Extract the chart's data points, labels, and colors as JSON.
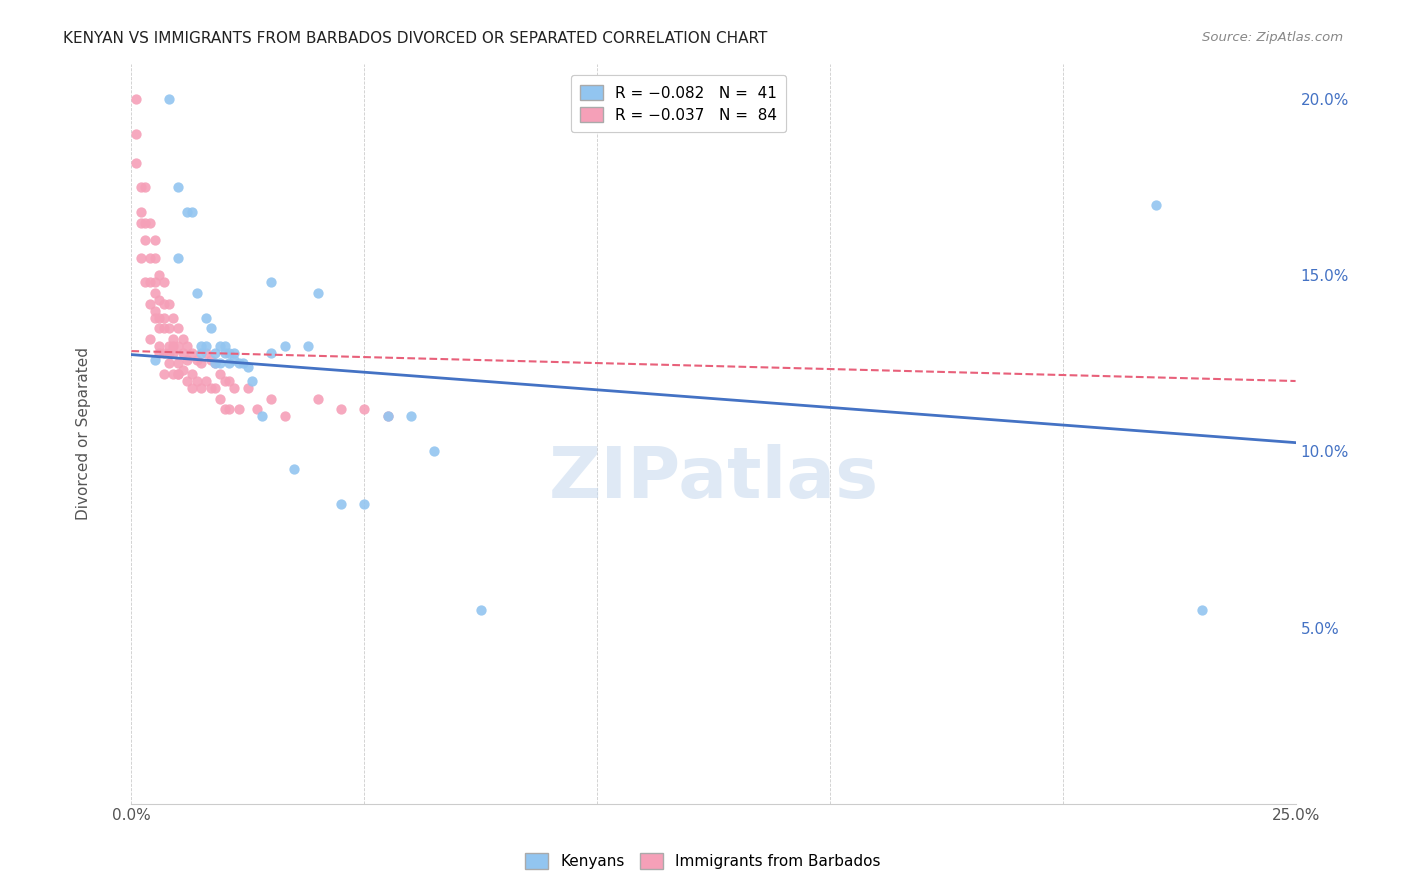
{
  "title": "KENYAN VS IMMIGRANTS FROM BARBADOS DIVORCED OR SEPARATED CORRELATION CHART",
  "source": "Source: ZipAtlas.com",
  "ylabel": "Divorced or Separated",
  "xlim": [
    0.0,
    0.25
  ],
  "ylim": [
    0.0,
    0.21
  ],
  "xtick_positions": [
    0.0,
    0.05,
    0.1,
    0.15,
    0.2,
    0.25
  ],
  "xticklabels": [
    "0.0%",
    "",
    "",
    "",
    "",
    "25.0%"
  ],
  "yticks_right": [
    0.05,
    0.1,
    0.15,
    0.2
  ],
  "ytick_right_labels": [
    "5.0%",
    "10.0%",
    "15.0%",
    "20.0%"
  ],
  "legend_color1": "#92C5F0",
  "legend_color2": "#F5A0B8",
  "line_color1": "#4472C4",
  "line_color2": "#E8607A",
  "watermark": "ZIPatlas",
  "kenyan_x": [
    0.005,
    0.008,
    0.01,
    0.01,
    0.012,
    0.013,
    0.014,
    0.015,
    0.015,
    0.016,
    0.016,
    0.017,
    0.018,
    0.018,
    0.019,
    0.019,
    0.02,
    0.02,
    0.021,
    0.021,
    0.022,
    0.022,
    0.023,
    0.024,
    0.025,
    0.026,
    0.028,
    0.03,
    0.033,
    0.035,
    0.038,
    0.04,
    0.045,
    0.05,
    0.055,
    0.06,
    0.065,
    0.075,
    0.22,
    0.23,
    0.03
  ],
  "kenyan_y": [
    0.126,
    0.2,
    0.175,
    0.155,
    0.168,
    0.168,
    0.145,
    0.128,
    0.13,
    0.138,
    0.13,
    0.135,
    0.128,
    0.125,
    0.13,
    0.125,
    0.128,
    0.13,
    0.128,
    0.125,
    0.126,
    0.128,
    0.125,
    0.125,
    0.124,
    0.12,
    0.11,
    0.128,
    0.13,
    0.095,
    0.13,
    0.145,
    0.085,
    0.085,
    0.11,
    0.11,
    0.1,
    0.055,
    0.17,
    0.055,
    0.148
  ],
  "barbados_x": [
    0.001,
    0.001,
    0.002,
    0.002,
    0.003,
    0.003,
    0.004,
    0.004,
    0.004,
    0.005,
    0.005,
    0.005,
    0.005,
    0.006,
    0.006,
    0.006,
    0.006,
    0.007,
    0.007,
    0.007,
    0.007,
    0.008,
    0.008,
    0.008,
    0.008,
    0.009,
    0.009,
    0.009,
    0.009,
    0.01,
    0.01,
    0.01,
    0.01,
    0.011,
    0.011,
    0.011,
    0.012,
    0.012,
    0.012,
    0.013,
    0.013,
    0.013,
    0.014,
    0.014,
    0.015,
    0.015,
    0.016,
    0.016,
    0.017,
    0.017,
    0.018,
    0.018,
    0.019,
    0.019,
    0.02,
    0.02,
    0.021,
    0.021,
    0.022,
    0.023,
    0.025,
    0.027,
    0.03,
    0.033,
    0.04,
    0.045,
    0.05,
    0.055,
    0.001,
    0.002,
    0.003,
    0.004,
    0.005,
    0.006,
    0.007,
    0.008,
    0.009,
    0.01,
    0.002,
    0.003,
    0.004,
    0.005,
    0.006,
    0.007
  ],
  "barbados_y": [
    0.2,
    0.19,
    0.175,
    0.165,
    0.175,
    0.165,
    0.165,
    0.155,
    0.148,
    0.16,
    0.155,
    0.148,
    0.138,
    0.15,
    0.143,
    0.135,
    0.128,
    0.148,
    0.142,
    0.135,
    0.128,
    0.142,
    0.135,
    0.13,
    0.125,
    0.138,
    0.132,
    0.128,
    0.122,
    0.135,
    0.13,
    0.125,
    0.122,
    0.132,
    0.128,
    0.123,
    0.13,
    0.126,
    0.12,
    0.128,
    0.122,
    0.118,
    0.126,
    0.12,
    0.125,
    0.118,
    0.128,
    0.12,
    0.126,
    0.118,
    0.125,
    0.118,
    0.122,
    0.115,
    0.12,
    0.112,
    0.12,
    0.112,
    0.118,
    0.112,
    0.118,
    0.112,
    0.115,
    0.11,
    0.115,
    0.112,
    0.112,
    0.11,
    0.182,
    0.155,
    0.16,
    0.142,
    0.145,
    0.138,
    0.138,
    0.128,
    0.13,
    0.122,
    0.168,
    0.148,
    0.132,
    0.14,
    0.13,
    0.122
  ],
  "kenyan_line_x": [
    0.0,
    0.25
  ],
  "kenyan_line_y": [
    0.1275,
    0.1025
  ],
  "barbados_line_x": [
    0.0,
    0.25
  ],
  "barbados_line_y": [
    0.1285,
    0.12
  ]
}
